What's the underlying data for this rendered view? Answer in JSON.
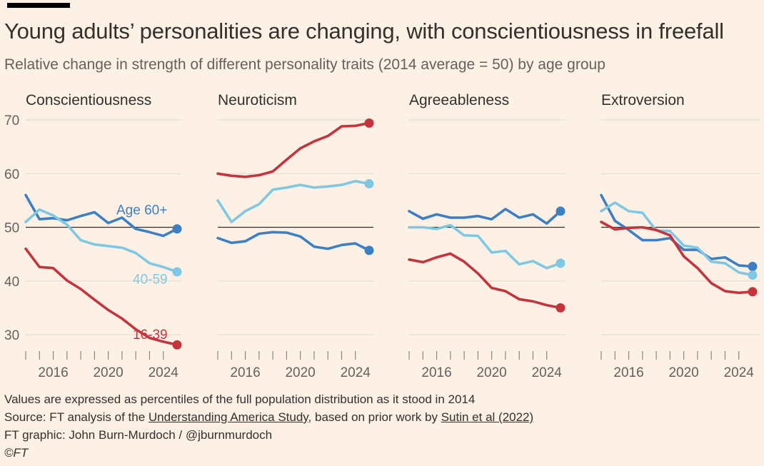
{
  "title": "Young adults’ personalities are changing, with conscientiousness in freefall",
  "subtitle": "Relative change in strength of different personality traits (2014 average = 50) by age group",
  "footnotes": {
    "note": "Values are expressed as percentiles of the full population distribution as it stood in 2014",
    "source_prefix": "Source: FT analysis of the ",
    "source_link1": "Understanding America Study",
    "source_middle": ", based on prior work by ",
    "source_link2": "Sutin et al (2022)",
    "credit": "FT graphic: John Burn-Murdoch / @jburnmurdoch",
    "copyright": "©FT"
  },
  "colors": {
    "background": "#fdf1e6",
    "age_60_plus": "#3d7fc4",
    "age_40_59": "#7ec8e3",
    "age_16_39": "#c5343c",
    "baseline": "#33302e",
    "axis_text": "#66605c"
  },
  "chart_data": {
    "type": "line",
    "y_ticks": [
      "70",
      "60",
      "50",
      "40",
      "30"
    ],
    "y_tick_values": [
      70,
      60,
      50,
      40,
      30
    ],
    "x_tick_labels": [
      "2016",
      "2020",
      "2024"
    ],
    "x_tick_values": [
      2016,
      2020,
      2024
    ],
    "ylim": [
      26,
      72
    ],
    "xlim": [
      2014,
      2025
    ],
    "baseline": 50,
    "x": [
      2014,
      2015,
      2016,
      2017,
      2018,
      2019,
      2020,
      2021,
      2022,
      2023,
      2024,
      2025
    ],
    "panels": [
      {
        "title": "Conscientiousness",
        "series": [
          {
            "name": "Age 60+",
            "color": "#3d7fc4",
            "values": [
              56,
              51.5,
              51.7,
              51.3,
              52.1,
              52.8,
              50.8,
              51.8,
              49.7,
              49.1,
              48.4,
              49.7
            ]
          },
          {
            "name": "40-59",
            "color": "#7ec8e3",
            "values": [
              51,
              53.3,
              52.2,
              50.5,
              47.6,
              46.8,
              46.5,
              46.2,
              45.2,
              43.3,
              42.6,
              41.7
            ]
          },
          {
            "name": "16-39",
            "color": "#c5343c",
            "values": [
              46,
              42.6,
              42.4,
              40.1,
              38.5,
              36.5,
              34.6,
              33,
              31,
              29.4,
              28.7,
              28.1
            ]
          }
        ],
        "labels": [
          {
            "text": "Age 60+",
            "color": "#3d7fc4"
          },
          {
            "text": "40-59",
            "color": "#7ec8e3"
          },
          {
            "text": "16-39",
            "color": "#c5343c"
          }
        ]
      },
      {
        "title": "Neuroticism",
        "series": [
          {
            "name": "Age 60+",
            "color": "#3d7fc4",
            "values": [
              48,
              47.1,
              47.4,
              48.8,
              49.1,
              49,
              48.3,
              46.4,
              46,
              46.7,
              47,
              45.7
            ]
          },
          {
            "name": "40-59",
            "color": "#7ec8e3",
            "values": [
              55,
              51,
              53,
              54.3,
              57,
              57.4,
              57.9,
              57.4,
              57.6,
              57.9,
              58.6,
              58.1
            ]
          },
          {
            "name": "16-39",
            "color": "#c5343c",
            "values": [
              60,
              59.6,
              59.4,
              59.7,
              60.4,
              62.6,
              64.7,
              66,
              67,
              68.8,
              68.9,
              69.4
            ]
          }
        ]
      },
      {
        "title": "Agreeableness",
        "series": [
          {
            "name": "Age 60+",
            "color": "#3d7fc4",
            "values": [
              53,
              51.6,
              52.4,
              51.8,
              51.8,
              52.1,
              51.5,
              53.4,
              51.8,
              52.4,
              50.7,
              53
            ]
          },
          {
            "name": "40-59",
            "color": "#7ec8e3",
            "values": [
              50,
              50,
              49.7,
              50.4,
              48.5,
              48.4,
              45.3,
              45.6,
              43.1,
              43.7,
              42.4,
              43.3
            ]
          },
          {
            "name": "16-39",
            "color": "#c5343c",
            "values": [
              44,
              43.5,
              44.4,
              45.1,
              43.6,
              41.4,
              38.7,
              38.1,
              36.6,
              36.2,
              35.5,
              35
            ]
          }
        ]
      },
      {
        "title": "Extroversion",
        "series": [
          {
            "name": "Age 60+",
            "color": "#3d7fc4",
            "values": [
              56,
              51.2,
              49.5,
              47.6,
              47.6,
              48,
              45.8,
              45.8,
              44.1,
              44.4,
              42.9,
              42.7
            ]
          },
          {
            "name": "40-59",
            "color": "#7ec8e3",
            "values": [
              53,
              54.6,
              53,
              52.7,
              49.4,
              49.3,
              46.6,
              46.2,
              43.6,
              43.3,
              41.6,
              41.1
            ]
          },
          {
            "name": "16-39",
            "color": "#c5343c",
            "values": [
              51,
              49.6,
              49.9,
              50,
              49.5,
              48.5,
              44.6,
              42.4,
              39.6,
              38.1,
              37.8,
              38
            ]
          }
        ]
      }
    ]
  }
}
